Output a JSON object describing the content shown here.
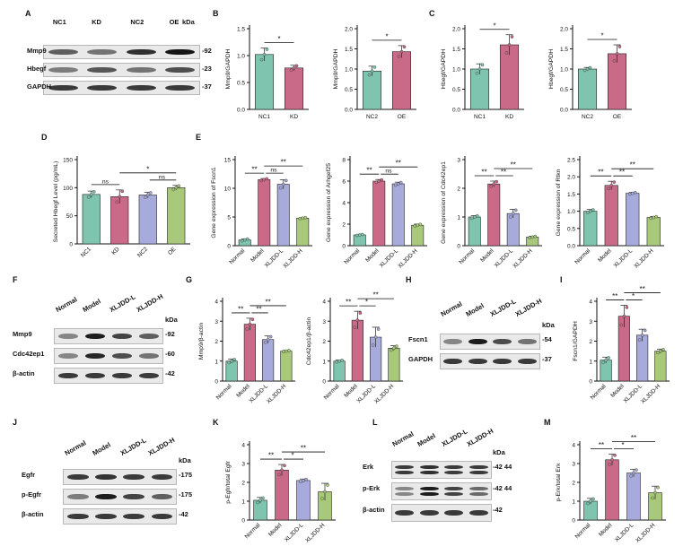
{
  "panels": {
    "A": {
      "letter": "A",
      "lanes": [
        "NC1",
        "KD",
        "NC2",
        "OE"
      ],
      "unit": "kDa",
      "rows": [
        {
          "name": "Mmp9",
          "kda": "-92",
          "int": [
            0.55,
            0.45,
            0.8,
            0.95
          ]
        },
        {
          "name": "Hbegf",
          "kda": "-23",
          "int": [
            0.4,
            0.6,
            0.45,
            0.65
          ]
        },
        {
          "name": "GAPDH",
          "kda": "-37",
          "int": [
            0.75,
            0.75,
            0.75,
            0.75
          ]
        }
      ]
    },
    "B": {
      "letter": "B"
    },
    "C": {
      "letter": "C"
    },
    "D": {
      "letter": "D"
    },
    "E": {
      "letter": "E"
    },
    "F": {
      "letter": "F",
      "lanes": [
        "Normal",
        "Model",
        "XLJDD-L",
        "XLJDD-H"
      ],
      "unit": "kDa",
      "rows": [
        {
          "name": "Mmp9",
          "kda": "-92",
          "int": [
            0.35,
            0.9,
            0.7,
            0.55
          ]
        },
        {
          "name": "Cdc42ep1",
          "kda": "-60",
          "int": [
            0.35,
            0.85,
            0.65,
            0.45
          ]
        },
        {
          "name": "β-actin",
          "kda": "-42",
          "int": [
            0.75,
            0.75,
            0.75,
            0.75
          ]
        }
      ]
    },
    "G": {
      "letter": "G"
    },
    "H": {
      "letter": "H",
      "lanes": [
        "Normal",
        "Model",
        "XLJDD-L",
        "XLJDD-H"
      ],
      "unit": "kDa",
      "rows": [
        {
          "name": "Fscn1",
          "kda": "-54",
          "int": [
            0.35,
            0.9,
            0.65,
            0.45
          ]
        },
        {
          "name": "GAPDH",
          "kda": "-37",
          "int": [
            0.75,
            0.75,
            0.75,
            0.75
          ]
        }
      ]
    },
    "I": {
      "letter": "I"
    },
    "J": {
      "letter": "J",
      "lanes": [
        "Normal",
        "Model",
        "XLJDD-L",
        "XLJDD-H"
      ],
      "unit": "kDa",
      "rows": [
        {
          "name": "Egfr",
          "kda": "-175",
          "int": [
            0.75,
            0.78,
            0.75,
            0.75
          ]
        },
        {
          "name": "p-Egfr",
          "kda": "-175",
          "int": [
            0.4,
            0.9,
            0.7,
            0.55
          ]
        },
        {
          "name": "β-actin",
          "kda": "-42",
          "int": [
            0.75,
            0.75,
            0.75,
            0.75
          ]
        }
      ]
    },
    "K": {
      "letter": "K"
    },
    "L": {
      "letter": "L",
      "lanes": [
        "Normal",
        "Model",
        "XLJDD-L",
        "XLJDD-H"
      ],
      "unit": "kDa",
      "rows": [
        {
          "name": "Erk",
          "kda": "-42 44",
          "int": [
            0.75,
            0.8,
            0.75,
            0.75
          ],
          "double": true
        },
        {
          "name": "p-Erk",
          "kda": "-42 44",
          "int": [
            0.35,
            0.9,
            0.7,
            0.5
          ],
          "double": true
        },
        {
          "name": "β-actin",
          "kda": "-42",
          "int": [
            0.75,
            0.75,
            0.75,
            0.75
          ]
        }
      ]
    },
    "M": {
      "letter": "M"
    }
  },
  "colors": {
    "g1": "#7fc4ae",
    "g2": "#c96a88",
    "g3": "#a7abdb",
    "g4": "#a8c97a",
    "text": "#111111"
  },
  "chart_data": [
    {
      "id": "B1",
      "type": "bar",
      "categories": [
        "NC1",
        "KD"
      ],
      "values": [
        1.02,
        0.77
      ],
      "errors": [
        0.12,
        0.05
      ],
      "ylabel": "Mmp9/GAPDH",
      "ylim": [
        0,
        1.5
      ],
      "yticks": [
        "0.0",
        "0.5",
        "1.0",
        "1.5"
      ],
      "sig": [
        {
          "a": 0,
          "b": 1,
          "text": "*"
        }
      ]
    },
    {
      "id": "B2",
      "type": "bar",
      "categories": [
        "NC2",
        "OE"
      ],
      "values": [
        0.95,
        1.43
      ],
      "errors": [
        0.12,
        0.15
      ],
      "ylabel": "Mmp9/GAPDH",
      "ylim": [
        0,
        2.0
      ],
      "yticks": [
        "0.0",
        "0.5",
        "1.0",
        "1.5",
        "2.0"
      ],
      "sig": [
        {
          "a": 0,
          "b": 1,
          "text": "*"
        }
      ]
    },
    {
      "id": "C1",
      "type": "bar",
      "categories": [
        "NC1",
        "KD"
      ],
      "values": [
        1.0,
        1.6
      ],
      "errors": [
        0.13,
        0.25
      ],
      "ylabel": "Hbegf/GAPDH",
      "ylim": [
        0,
        2.0
      ],
      "yticks": [
        "0.0",
        "0.5",
        "1.0",
        "1.5",
        "2.0"
      ],
      "sig": [
        {
          "a": 0,
          "b": 1,
          "text": "*"
        }
      ]
    },
    {
      "id": "C2",
      "type": "bar",
      "categories": [
        "NC2",
        "OE"
      ],
      "values": [
        1.0,
        1.38
      ],
      "errors": [
        0.04,
        0.22
      ],
      "ylabel": "Hbegf/GAPDH",
      "ylim": [
        0,
        2.0
      ],
      "yticks": [
        "0.0",
        "0.5",
        "1.0",
        "1.5",
        "2.0"
      ],
      "sig": [
        {
          "a": 0,
          "b": 1,
          "text": "*"
        }
      ]
    },
    {
      "id": "D",
      "type": "bar",
      "categories": [
        "NC1",
        "KD",
        "NC2",
        "OE"
      ],
      "values": [
        88,
        84,
        87,
        100
      ],
      "errors": [
        6,
        12,
        5,
        4
      ],
      "ylabel": "Secreted Hbegf Level (pg/mL)",
      "ylim": [
        0,
        150
      ],
      "yticks": [
        "0",
        "50",
        "100",
        "150"
      ],
      "sig": [
        {
          "a": 0,
          "b": 1,
          "text": "ns"
        },
        {
          "a": 2,
          "b": 3,
          "text": "ns"
        },
        {
          "a": 1,
          "b": 3,
          "text": "*"
        }
      ]
    },
    {
      "id": "E1",
      "type": "bar",
      "categories": [
        "Normal",
        "Model",
        "XLJDD-L",
        "XLJDD-H"
      ],
      "values": [
        1.0,
        11.5,
        10.7,
        4.8
      ],
      "errors": [
        0.2,
        0.2,
        0.8,
        0.1
      ],
      "ylabel": "Gene expression of Fscn1",
      "ylim": [
        0,
        15
      ],
      "yticks": [
        "0",
        "5",
        "10",
        "15"
      ],
      "sig": [
        {
          "a": 0,
          "b": 1,
          "text": "**"
        },
        {
          "a": 1,
          "b": 2,
          "text": "ns"
        },
        {
          "a": 1,
          "b": 3,
          "text": "**"
        }
      ]
    },
    {
      "id": "E2",
      "type": "bar",
      "categories": [
        "Normal",
        "Model",
        "XLJDD-L",
        "XLJDD-H"
      ],
      "values": [
        1.0,
        6.0,
        5.75,
        1.9
      ],
      "errors": [
        0.05,
        0.15,
        0.15,
        0.1
      ],
      "ylabel": "Gene expression of Arhgef25",
      "ylim": [
        0,
        8
      ],
      "yticks": [
        "0",
        "2",
        "4",
        "6",
        "8"
      ],
      "sig": [
        {
          "a": 0,
          "b": 1,
          "text": "**"
        },
        {
          "a": 1,
          "b": 2,
          "text": "ns"
        },
        {
          "a": 1,
          "b": 3,
          "text": "**"
        }
      ]
    },
    {
      "id": "E3",
      "type": "bar",
      "categories": [
        "Normal",
        "Model",
        "XLJDD-L",
        "XLJDD-H"
      ],
      "values": [
        1.0,
        2.15,
        1.12,
        0.3
      ],
      "errors": [
        0.05,
        0.1,
        0.15,
        0.03
      ],
      "ylabel": "Gene expression of Cdc42ep1",
      "ylim": [
        0,
        3
      ],
      "yticks": [
        "0",
        "1",
        "2",
        "3"
      ],
      "sig": [
        {
          "a": 0,
          "b": 1,
          "text": "**"
        },
        {
          "a": 1,
          "b": 2,
          "text": "**"
        },
        {
          "a": 1,
          "b": 3,
          "text": "**"
        }
      ]
    },
    {
      "id": "E4",
      "type": "bar",
      "categories": [
        "Normal",
        "Model",
        "XLJDD-L",
        "XLJDD-H"
      ],
      "values": [
        1.0,
        1.75,
        1.52,
        0.82
      ],
      "errors": [
        0.05,
        0.12,
        0.03,
        0.03
      ],
      "ylabel": "Gene expression of Rtkn",
      "ylim": [
        0,
        2.5
      ],
      "yticks": [
        "0.0",
        "0.5",
        "1.0",
        "1.5",
        "2.0",
        "2.5"
      ],
      "sig": [
        {
          "a": 0,
          "b": 1,
          "text": "**"
        },
        {
          "a": 1,
          "b": 2,
          "text": "**"
        },
        {
          "a": 1,
          "b": 3,
          "text": "**"
        }
      ]
    },
    {
      "id": "G1",
      "type": "bar",
      "categories": [
        "Normal",
        "Model",
        "XLJDD-L",
        "XLJDD-H"
      ],
      "values": [
        1.0,
        2.85,
        2.08,
        1.5
      ],
      "errors": [
        0.1,
        0.3,
        0.18,
        0.04
      ],
      "ylabel": "Mmp9/β-actin",
      "ylim": [
        0,
        4
      ],
      "yticks": [
        "0",
        "1",
        "2",
        "3",
        "4"
      ],
      "sig": [
        {
          "a": 0,
          "b": 1,
          "text": "**"
        },
        {
          "a": 1,
          "b": 2,
          "text": "**"
        },
        {
          "a": 1,
          "b": 3,
          "text": "**"
        }
      ]
    },
    {
      "id": "G2",
      "type": "bar",
      "categories": [
        "Normal",
        "Model",
        "XLJDD-L",
        "XLJDD-H"
      ],
      "values": [
        1.0,
        3.05,
        2.2,
        1.65
      ],
      "errors": [
        0.05,
        0.45,
        0.5,
        0.12
      ],
      "ylabel": "Cdc42ep1/β-actin",
      "ylim": [
        0,
        4
      ],
      "yticks": [
        "0",
        "1",
        "2",
        "3",
        "4"
      ],
      "sig": [
        {
          "a": 0,
          "b": 1,
          "text": "**"
        },
        {
          "a": 1,
          "b": 2,
          "text": "*"
        },
        {
          "a": 1,
          "b": 3,
          "text": "**"
        }
      ]
    },
    {
      "id": "I",
      "type": "bar",
      "categories": [
        "Normal",
        "Model",
        "XLJDD-L",
        "XLJDD-H"
      ],
      "values": [
        1.05,
        3.25,
        2.3,
        1.5
      ],
      "errors": [
        0.15,
        0.55,
        0.3,
        0.1
      ],
      "ylabel": "Fscn1/GAPDH",
      "ylim": [
        0,
        4
      ],
      "yticks": [
        "0",
        "1",
        "2",
        "3",
        "4"
      ],
      "sig": [
        {
          "a": 0,
          "b": 1,
          "text": "**"
        },
        {
          "a": 1,
          "b": 2,
          "text": "*"
        },
        {
          "a": 1,
          "b": 3,
          "text": "**"
        }
      ]
    },
    {
      "id": "K",
      "type": "bar",
      "categories": [
        "Normal",
        "Model",
        "XLJDD-L",
        "XLJDD-H"
      ],
      "values": [
        1.05,
        2.65,
        2.1,
        1.5
      ],
      "errors": [
        0.15,
        0.3,
        0.08,
        0.45
      ],
      "ylabel": "p-Egfr/total Egfr",
      "ylim": [
        0,
        4
      ],
      "yticks": [
        "0",
        "1",
        "2",
        "3",
        "4"
      ],
      "sig": [
        {
          "a": 0,
          "b": 1,
          "text": "**"
        },
        {
          "a": 1,
          "b": 2,
          "text": "*"
        },
        {
          "a": 1,
          "b": 3,
          "text": "**"
        }
      ]
    },
    {
      "id": "M",
      "type": "bar",
      "categories": [
        "Normal",
        "Model",
        "XLJDD-L",
        "XLJDD-H"
      ],
      "values": [
        1.0,
        3.2,
        2.5,
        1.45
      ],
      "errors": [
        0.15,
        0.3,
        0.2,
        0.35
      ],
      "ylabel": "p-Erk/total Erk",
      "ylim": [
        0,
        4
      ],
      "yticks": [
        "0",
        "1",
        "2",
        "3",
        "4"
      ],
      "sig": [
        {
          "a": 0,
          "b": 1,
          "text": "**"
        },
        {
          "a": 1,
          "b": 2,
          "text": "*"
        },
        {
          "a": 1,
          "b": 3,
          "text": "**"
        }
      ]
    }
  ]
}
